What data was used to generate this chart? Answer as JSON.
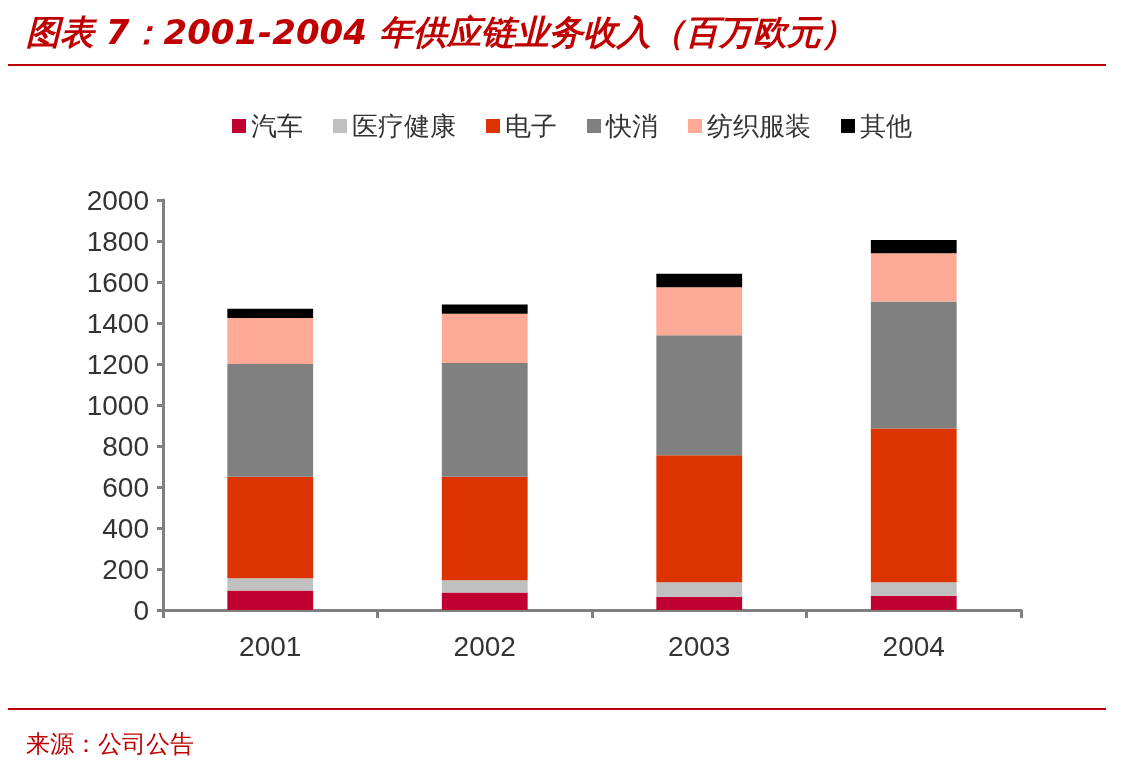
{
  "chart_data": {
    "type": "bar",
    "title": "图表 7：2001-2004 年供应链业务收入（百万欧元）",
    "categories": [
      "2001",
      "2002",
      "2003",
      "2004"
    ],
    "stacked": true,
    "series": [
      {
        "name": "汽车",
        "color": "#c00030",
        "values": [
          95,
          85,
          65,
          70
        ]
      },
      {
        "name": "医疗健康",
        "color": "#c0c0c0",
        "values": [
          60,
          60,
          70,
          65
        ]
      },
      {
        "name": "电子",
        "color": "#dc3300",
        "values": [
          495,
          505,
          620,
          750
        ]
      },
      {
        "name": "快消",
        "color": "#808080",
        "values": [
          550,
          555,
          585,
          620
        ]
      },
      {
        "name": "纺织服装",
        "color": "#ffaa96",
        "values": [
          225,
          240,
          235,
          235
        ]
      },
      {
        "name": "其他",
        "color": "#000000",
        "values": [
          45,
          45,
          65,
          65
        ]
      }
    ],
    "ylim": [
      0,
      2000
    ],
    "yticks": [
      0,
      200,
      400,
      600,
      800,
      1000,
      1200,
      1400,
      1600,
      1800,
      2000
    ],
    "grid": false,
    "legend": "top",
    "annotations": [
      "来源：公司公告"
    ]
  }
}
